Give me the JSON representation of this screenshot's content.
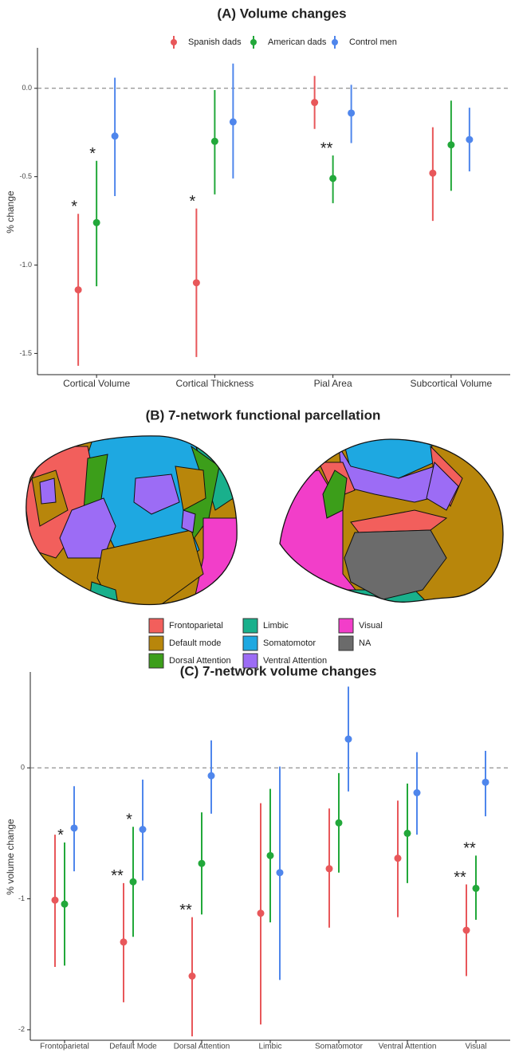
{
  "chart_data": [
    {
      "type": "pointrange",
      "title": "(A) Volume changes",
      "y_label": "% change",
      "categories": [
        "Cortical Volume",
        "Cortical Thickness",
        "Pial Area",
        "Subcortical Volume"
      ],
      "series": [
        {
          "name": "Spanish dads",
          "color": "#e8575a",
          "values": [
            -1.14,
            -1.1,
            -0.08,
            -0.48
          ],
          "lower": [
            -1.57,
            -1.52,
            -0.23,
            -0.75
          ],
          "upper": [
            -0.71,
            -0.68,
            0.07,
            -0.22
          ]
        },
        {
          "name": "American dads",
          "color": "#22a83a",
          "values": [
            -0.76,
            -0.3,
            -0.51,
            -0.32
          ],
          "lower": [
            -1.12,
            -0.6,
            -0.65,
            -0.58
          ],
          "upper": [
            -0.41,
            -0.01,
            -0.38,
            -0.07
          ]
        },
        {
          "name": "Control men",
          "color": "#4f86ec",
          "values": [
            -0.27,
            -0.19,
            -0.14,
            -0.29
          ],
          "lower": [
            -0.61,
            -0.51,
            -0.31,
            -0.47
          ],
          "upper": [
            0.06,
            0.14,
            0.02,
            -0.11
          ]
        }
      ],
      "annotations": [
        {
          "text": "*",
          "category": "Cortical Volume",
          "series": "Spanish dads"
        },
        {
          "text": "*",
          "category": "Cortical Volume",
          "series": "American dads"
        },
        {
          "text": "*",
          "category": "Cortical Thickness",
          "series": "Spanish dads"
        },
        {
          "text": "**",
          "category": "Pial Area",
          "series": "American dads"
        }
      ],
      "ylim": [
        -1.62,
        0.22
      ],
      "yticks": [
        {
          "value": 0,
          "label": "0.0"
        },
        {
          "value": -0.5,
          "label": "-0.5"
        },
        {
          "value": -1,
          "label": "-1.0"
        },
        {
          "value": -1.5,
          "label": "-1.5"
        }
      ],
      "legend": "top"
    },
    {
      "type": "parcellation",
      "title": "(B) 7-network functional parcellation",
      "legend_items": [
        {
          "name": "Frontoparietal",
          "color": "#f25f5c"
        },
        {
          "name": "Default mode",
          "color": "#b8860b"
        },
        {
          "name": "Dorsal Attention",
          "color": "#3c9e1a"
        },
        {
          "name": "Limbic",
          "color": "#19b08c"
        },
        {
          "name": "Somatomotor",
          "color": "#1ea8e1"
        },
        {
          "name": "Ventral Attention",
          "color": "#9c6cf5"
        },
        {
          "name": "Visual",
          "color": "#f23ec9"
        },
        {
          "name": "NA",
          "color": "#6b6b6b"
        }
      ]
    },
    {
      "type": "pointrange",
      "title": "(C) 7-network volume changes",
      "y_label": "% volume change",
      "categories": [
        "Frontoparietal",
        "Default Mode",
        "Dorsal Attention",
        "Limbic",
        "Somatomotor",
        "Ventral Attention",
        "Visual"
      ],
      "series": [
        {
          "name": "Spanish dads",
          "color": "#e8575a",
          "values": [
            -1.01,
            -1.33,
            -1.59,
            -1.11,
            -0.77,
            -0.69,
            -1.24
          ],
          "lower": [
            -1.52,
            -1.79,
            -2.05,
            -1.96,
            -1.22,
            -1.14,
            -1.59
          ],
          "upper": [
            -0.51,
            -0.88,
            -1.14,
            -0.27,
            -0.31,
            -0.25,
            -0.89
          ]
        },
        {
          "name": "American dads",
          "color": "#22a83a",
          "values": [
            -1.04,
            -0.87,
            -0.73,
            -0.67,
            -0.42,
            -0.5,
            -0.92
          ],
          "lower": [
            -1.51,
            -1.29,
            -1.12,
            -1.18,
            -0.8,
            -0.88,
            -1.16
          ],
          "upper": [
            -0.57,
            -0.45,
            -0.34,
            -0.16,
            -0.04,
            -0.12,
            -0.67
          ]
        },
        {
          "name": "Control men",
          "color": "#4f86ec",
          "values": [
            -0.46,
            -0.47,
            -0.06,
            -0.8,
            0.22,
            -0.19,
            -0.11
          ],
          "lower": [
            -0.79,
            -0.86,
            -0.35,
            -1.62,
            -0.18,
            -0.51,
            -0.37
          ],
          "upper": [
            -0.14,
            -0.09,
            0.21,
            0.01,
            0.62,
            0.12,
            0.13
          ]
        }
      ],
      "annotations": [
        {
          "text": "*",
          "category": "Frontoparietal",
          "series": "American dads"
        },
        {
          "text": "**",
          "category": "Default Mode",
          "series": "Spanish dads"
        },
        {
          "text": "*",
          "category": "Default Mode",
          "series": "American dads"
        },
        {
          "text": "**",
          "category": "Dorsal Attention",
          "series": "Spanish dads"
        },
        {
          "text": "**",
          "category": "Visual",
          "series": "Spanish dads"
        },
        {
          "text": "**",
          "category": "Visual",
          "series": "American dads"
        }
      ],
      "ylim": [
        -2.08,
        0.72
      ],
      "yticks": [
        0,
        -1,
        -2
      ]
    }
  ]
}
